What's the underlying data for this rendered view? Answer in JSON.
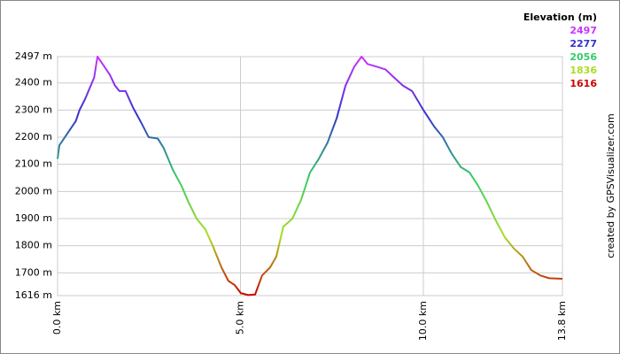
{
  "chart_data": {
    "type": "line",
    "legend_title": "Elevation (m)",
    "color_scale": [
      {
        "value": 2497,
        "color": "#cc33ff"
      },
      {
        "value": 2277,
        "color": "#3333cc"
      },
      {
        "value": 2056,
        "color": "#33cc66"
      },
      {
        "value": 1836,
        "color": "#aadd22"
      },
      {
        "value": 1616,
        "color": "#cc0000"
      }
    ],
    "credit": "created by GPSVisualizer.com",
    "xlim": [
      0,
      13.8
    ],
    "ylim": [
      1616,
      2497
    ],
    "xticks": [
      {
        "value": 0,
        "label": "0.0 km"
      },
      {
        "value": 5,
        "label": "5.0 km"
      },
      {
        "value": 10,
        "label": "10.0 km"
      },
      {
        "value": 13.8,
        "label": "13.8 km"
      }
    ],
    "yticks": [
      {
        "value": 1616,
        "label": "1616 m"
      },
      {
        "value": 1700,
        "label": "1700 m"
      },
      {
        "value": 1800,
        "label": "1800 m"
      },
      {
        "value": 1900,
        "label": "1900 m"
      },
      {
        "value": 2000,
        "label": "2000 m"
      },
      {
        "value": 2100,
        "label": "2100 m"
      },
      {
        "value": 2200,
        "label": "2200 m"
      },
      {
        "value": 2300,
        "label": "2300 m"
      },
      {
        "value": 2400,
        "label": "2400 m"
      },
      {
        "value": 2497,
        "label": "2497 m"
      }
    ],
    "grid": true,
    "x": [
      0,
      0.05,
      0.5,
      0.6,
      0.75,
      1.0,
      1.09,
      1.28,
      1.43,
      1.57,
      1.69,
      1.86,
      2.06,
      2.3,
      2.49,
      2.74,
      2.9,
      3.15,
      3.39,
      3.58,
      3.8,
      4.04,
      4.24,
      4.48,
      4.67,
      4.84,
      5.01,
      5.21,
      5.4,
      5.59,
      5.81,
      5.98,
      6.17,
      6.42,
      6.66,
      6.9,
      7.14,
      7.38,
      7.63,
      7.87,
      8.11,
      8.31,
      8.47,
      8.72,
      8.96,
      9.2,
      9.44,
      9.69,
      10.0,
      10.29,
      10.53,
      10.77,
      11.02,
      11.26,
      11.5,
      11.74,
      11.99,
      12.23,
      12.47,
      12.71,
      12.95,
      13.2,
      13.44,
      13.8
    ],
    "values": [
      2120,
      2170,
      2260,
      2300,
      2340,
      2420,
      2497,
      2460,
      2430,
      2390,
      2370,
      2370,
      2310,
      2250,
      2200,
      2195,
      2160,
      2080,
      2020,
      1960,
      1900,
      1860,
      1800,
      1720,
      1670,
      1655,
      1625,
      1618,
      1620,
      1690,
      1720,
      1760,
      1870,
      1900,
      1970,
      2070,
      2120,
      2180,
      2270,
      2390,
      2460,
      2497,
      2470,
      2460,
      2450,
      2420,
      2390,
      2370,
      2300,
      2240,
      2200,
      2140,
      2090,
      2070,
      2020,
      1960,
      1890,
      1830,
      1790,
      1760,
      1710,
      1690,
      1680,
      1678
    ]
  }
}
